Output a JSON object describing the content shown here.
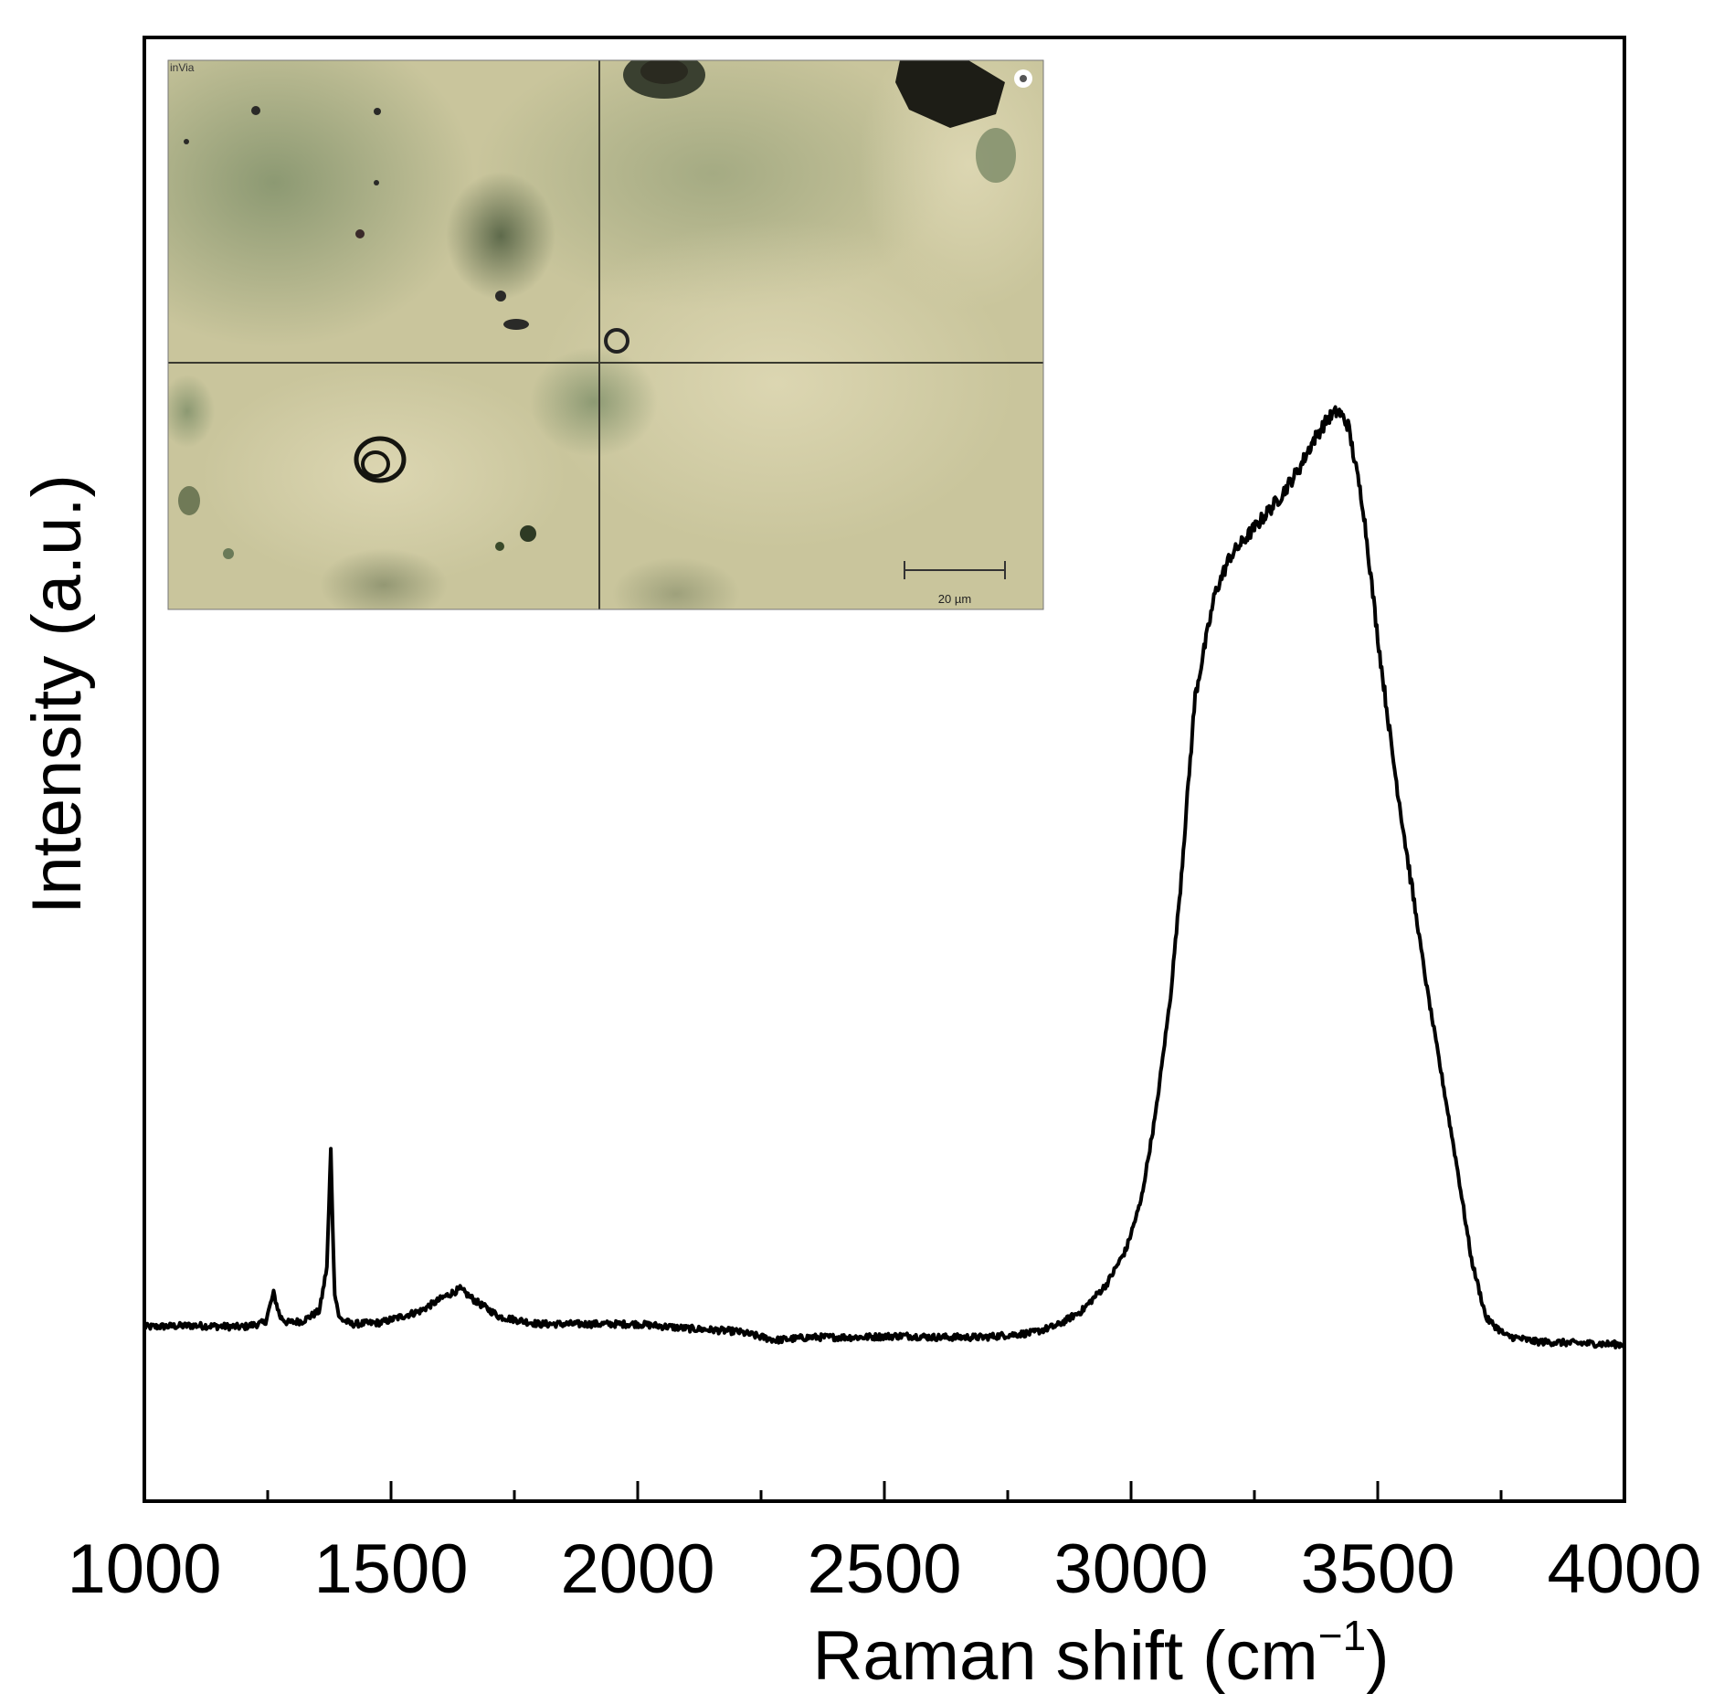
{
  "chart_data": {
    "type": "line",
    "xlabel": "Raman shift (cm",
    "xlabel_sup": "−1",
    "xlabel_close": ")",
    "ylabel": "Intensity (a.u.)",
    "xlim": [
      1000,
      4000
    ],
    "ylim": [
      0,
      100
    ],
    "x_ticks": [
      1000,
      1500,
      2000,
      2500,
      3000,
      3500,
      4000
    ],
    "x_minor_ticks": [
      1250,
      1750,
      2250,
      2750,
      3250,
      3750
    ],
    "grid": false,
    "legend": "none",
    "series": [
      {
        "color": "#000000",
        "x": [
          1000,
          1100,
          1200,
          1245,
          1262,
          1275,
          1290,
          1320,
          1355,
          1370,
          1378,
          1385,
          1395,
          1420,
          1480,
          1560,
          1610,
          1640,
          1670,
          1720,
          1800,
          1900,
          2000,
          2100,
          2200,
          2280,
          2350,
          2450,
          2540,
          2600,
          2700,
          2800,
          2850,
          2900,
          2950,
          2990,
          3020,
          3050,
          3080,
          3100,
          3130,
          3170,
          3200,
          3250,
          3300,
          3340,
          3370,
          3400,
          3420,
          3440,
          3470,
          3500,
          3530,
          3560,
          3600,
          3630,
          3660,
          3690,
          3720,
          3760,
          3820,
          3900,
          4000
        ],
        "y": [
          11.9,
          12.0,
          11.9,
          12.2,
          14.2,
          12.6,
          12.2,
          12.3,
          13.0,
          16.0,
          24.0,
          14.5,
          12.5,
          12.1,
          12.2,
          13.0,
          14.0,
          14.5,
          13.7,
          12.6,
          12.1,
          12.1,
          12.1,
          11.8,
          11.6,
          11.0,
          11.2,
          11.2,
          11.3,
          11.2,
          11.2,
          11.5,
          12.0,
          13.0,
          14.8,
          17.2,
          20.5,
          26.5,
          34.5,
          42.0,
          55.0,
          62.0,
          64.5,
          66.5,
          68.5,
          70.5,
          72.5,
          74.0,
          74.5,
          73.5,
          68.0,
          59.0,
          51.0,
          44.0,
          35.0,
          29.0,
          23.0,
          16.5,
          12.5,
          11.3,
          10.9,
          10.8,
          10.7
        ]
      }
    ]
  },
  "inset": {
    "corner_label": "inVia",
    "scale_bar_label": "20 µm"
  }
}
